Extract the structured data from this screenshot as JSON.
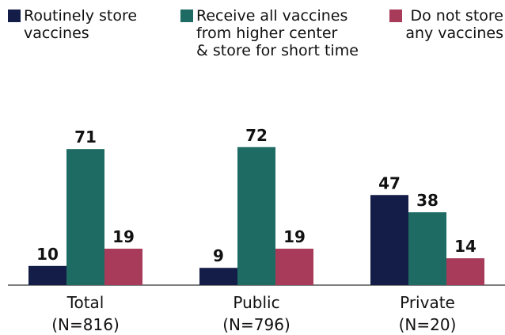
{
  "chart_data": {
    "type": "bar",
    "categories": [
      "Total\n(N=816)",
      "Public\n(N=796)",
      "Private\n(N=20)"
    ],
    "series": [
      {
        "name": "Routinely store\nvaccines",
        "color": "#141c48",
        "values": [
          10,
          9,
          47
        ]
      },
      {
        "name": "Receive all vaccines\nfrom higher center\n& store for short time",
        "color": "#1e6b63",
        "values": [
          71,
          72,
          38
        ]
      },
      {
        "name": "Do not store\nany vaccines",
        "color": "#a83a5a",
        "values": [
          19,
          19,
          14
        ]
      }
    ],
    "ylim": [
      0,
      100
    ],
    "legend": "top"
  }
}
